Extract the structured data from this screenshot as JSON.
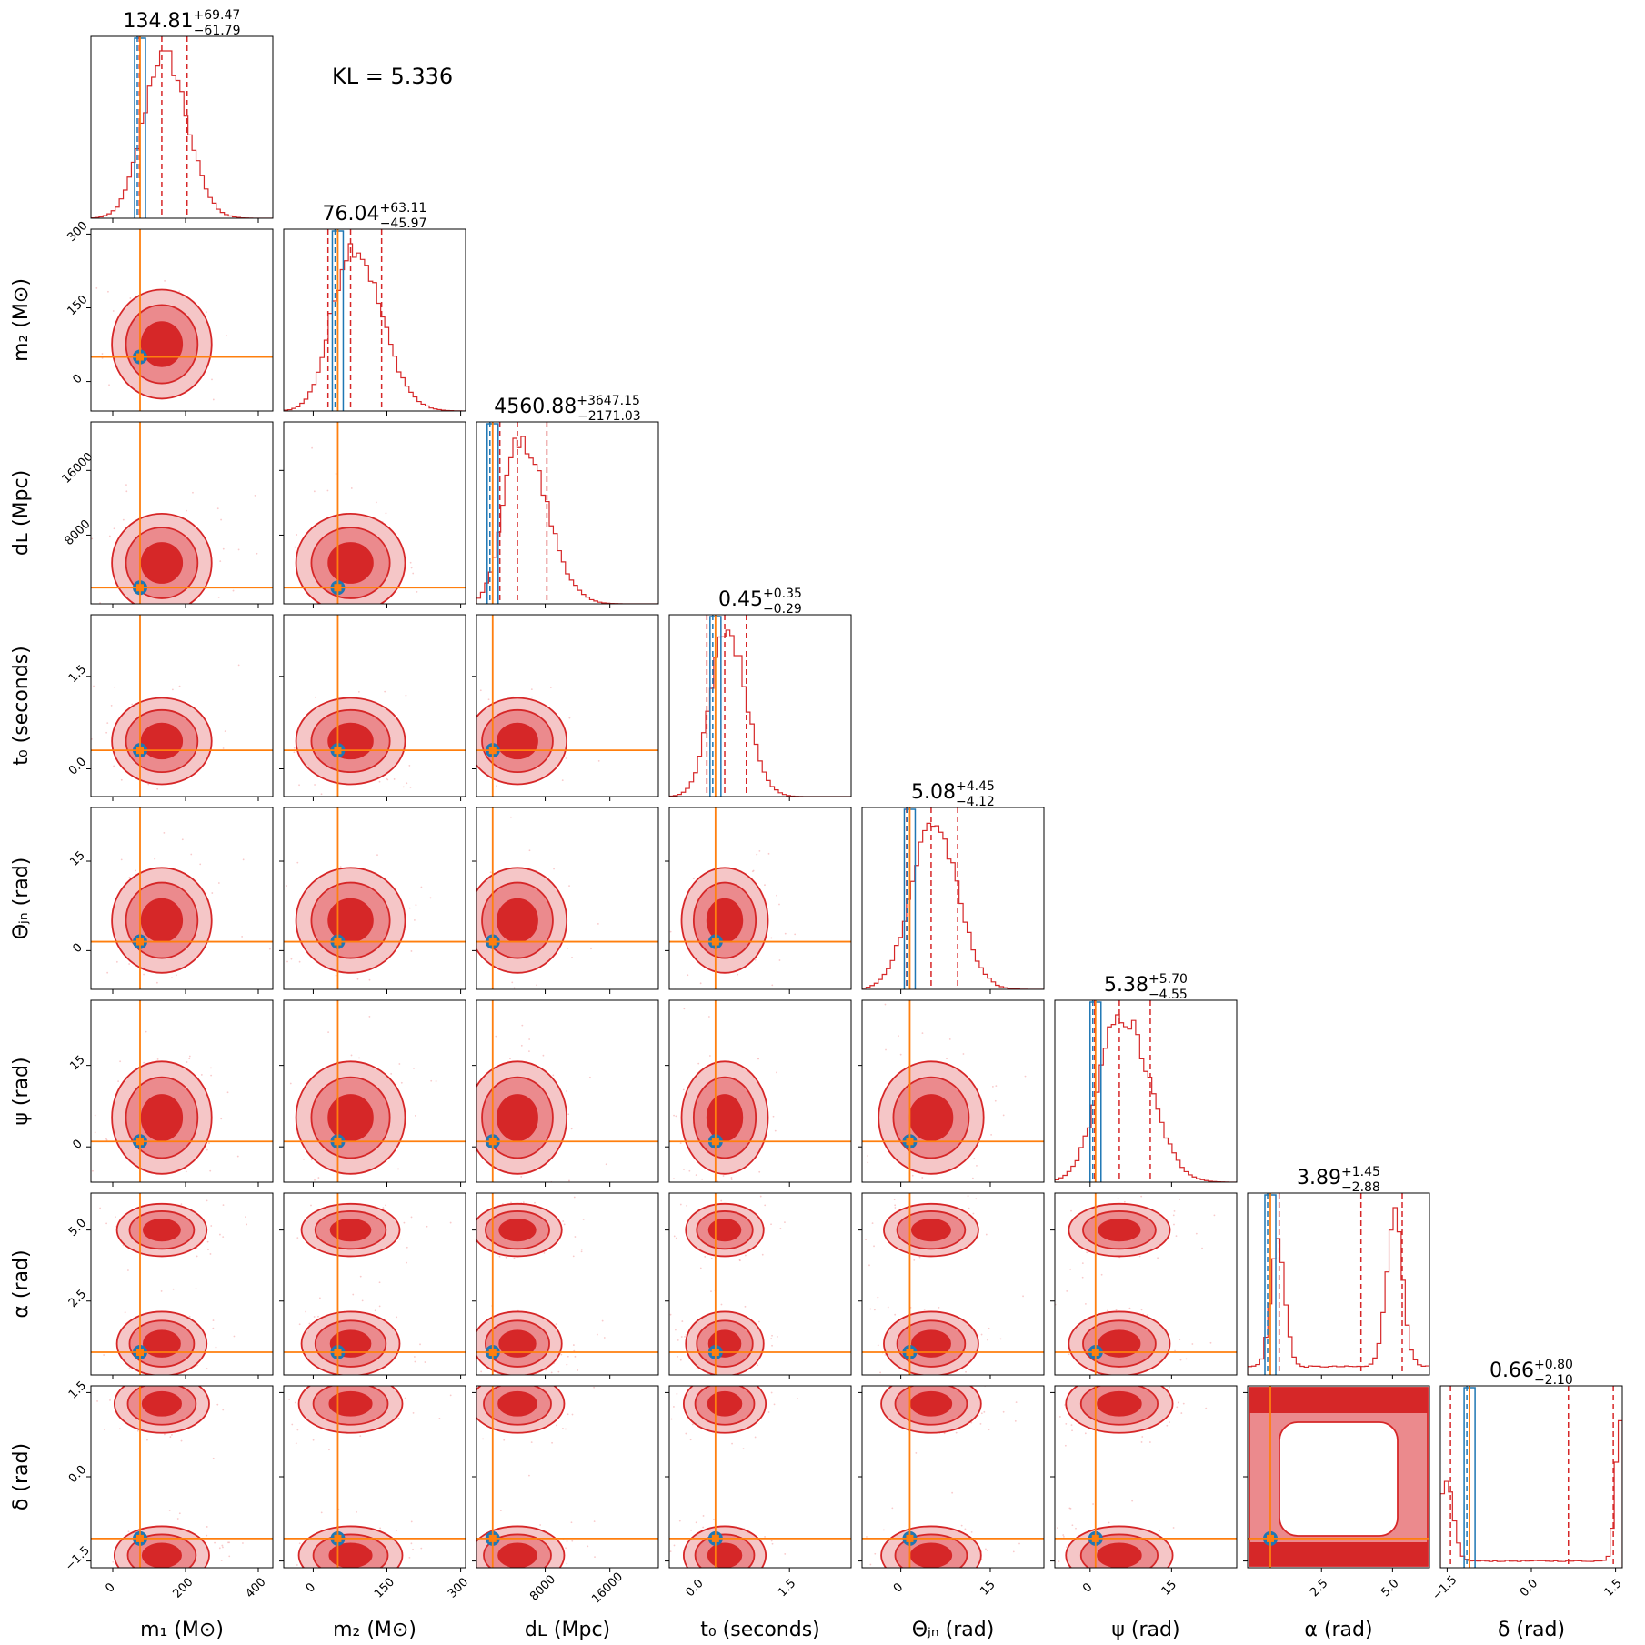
{
  "chart_data": {
    "type": "corner",
    "kl_label": "KL = 5.336",
    "parameters": [
      {
        "label": "m₁ (M⊙)",
        "range": [
          -60,
          440
        ],
        "ticks": [
          0,
          200,
          400
        ],
        "tick_labels": [
          "0",
          "200",
          "400"
        ],
        "truth": 75,
        "title_median": "134.81",
        "title_plus": "+69.47",
        "title_minus": "−61.79",
        "median": 134.81,
        "lo": 73.02,
        "hi": 204.28
      },
      {
        "label": "m₂ (M⊙)",
        "range": [
          -60,
          310
        ],
        "ticks": [
          0,
          150,
          300
        ],
        "tick_labels": [
          "0",
          "150",
          "300"
        ],
        "truth": 50,
        "title_median": "76.04",
        "title_plus": "+63.11",
        "title_minus": "−45.97",
        "median": 76.04,
        "lo": 30.07,
        "hi": 139.15
      },
      {
        "label": "d_L (Mpc)",
        "range": [
          -500,
          22000
        ],
        "ticks": [
          8000,
          16000
        ],
        "tick_labels": [
          "8000",
          "16000"
        ],
        "truth": 1500,
        "title_median": "4560.88",
        "title_plus": "+3647.15",
        "title_minus": "−2171.03",
        "median": 4560.88,
        "lo": 2389.85,
        "hi": 8208.03
      },
      {
        "label": "t₀ (seconds)",
        "range": [
          -0.45,
          2.5
        ],
        "ticks": [
          0.0,
          1.5
        ],
        "tick_labels": [
          "0.0",
          "1.5"
        ],
        "truth": 0.3,
        "title_median": "0.45",
        "title_plus": "+0.35",
        "title_minus": "−0.29",
        "median": 0.45,
        "lo": 0.16,
        "hi": 0.8
      },
      {
        "label": "Θ_jn (rad)",
        "range": [
          -6.5,
          24
        ],
        "ticks": [
          0,
          15
        ],
        "tick_labels": [
          "0",
          "15"
        ],
        "truth": 1.5,
        "title_median": "5.08",
        "title_plus": "+4.45",
        "title_minus": "−4.12",
        "median": 5.08,
        "lo": 0.96,
        "hi": 9.53
      },
      {
        "label": "ψ (rad)",
        "range": [
          -6.5,
          27
        ],
        "ticks": [
          0,
          15
        ],
        "tick_labels": [
          "0",
          "15"
        ],
        "truth": 1.0,
        "title_median": "5.38",
        "title_plus": "+5.70",
        "title_minus": "−4.55",
        "median": 5.38,
        "lo": 0.83,
        "hi": 11.08
      },
      {
        "label": "α (rad)",
        "range": [
          -0.1,
          6.3
        ],
        "ticks": [
          2.5,
          5.0
        ],
        "tick_labels": [
          "2.5",
          "5.0"
        ],
        "truth": 0.7,
        "title_median": "3.89",
        "title_plus": "+1.45",
        "title_minus": "−2.88",
        "median": 3.89,
        "lo": 1.01,
        "hi": 5.34
      },
      {
        "label": "δ (rad)",
        "range": [
          -1.62,
          1.62
        ],
        "ticks": [
          -1.5,
          0.0,
          1.5
        ],
        "tick_labels": [
          "−1.5",
          "0.0",
          "1.5"
        ],
        "truth": -1.1,
        "title_median": "0.66",
        "title_plus": "+0.80",
        "title_minus": "−2.10",
        "median": 0.66,
        "lo": -1.44,
        "hi": 1.46
      }
    ],
    "xlabels": [
      "m₁ (M⊙)",
      "m₂ (M⊙)",
      "dʟ (Mpc)",
      "t₀ (seconds)",
      "Θⱼₙ (rad)",
      "ψ (rad)",
      "α (rad)",
      "δ (rad)"
    ],
    "series": [
      {
        "name": "",
        "role": "posterior",
        "color": "#d62728"
      },
      {
        "name": "",
        "role": "second posterior",
        "color": "#1f77b4"
      },
      {
        "name": "",
        "role": "truth",
        "color": "#ff7f0e"
      }
    ],
    "grid": false
  }
}
